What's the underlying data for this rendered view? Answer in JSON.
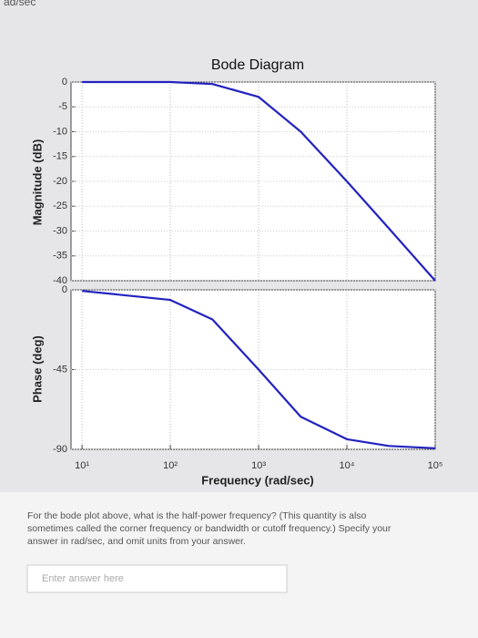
{
  "header": {
    "fragment": "ad/sec"
  },
  "chart_data": [
    {
      "type": "line",
      "title": "Bode Diagram",
      "ylabel": "Magnitude (dB)",
      "xscale": "log",
      "x": [
        10,
        100,
        300,
        1000,
        3000,
        10000,
        30000,
        100000
      ],
      "series": [
        {
          "name": "Magnitude",
          "color": "#2222c0",
          "values": [
            0,
            0,
            -0.4,
            -3,
            -10,
            -20,
            -29.5,
            -40
          ]
        }
      ],
      "xlim": [
        7.5,
        100000
      ],
      "ylim": [
        -40,
        0
      ],
      "yticks": [
        0,
        -5,
        -10,
        -15,
        -20,
        -25,
        -30,
        -35,
        -40
      ],
      "grid": true
    },
    {
      "type": "line",
      "ylabel": "Phase (deg)",
      "xlabel": "Frequency (rad/sec)",
      "xscale": "log",
      "x": [
        10,
        100,
        300,
        1000,
        3000,
        10000,
        30000,
        100000
      ],
      "series": [
        {
          "name": "Phase",
          "color": "#2222c0",
          "values": [
            -0.6,
            -5.7,
            -16.7,
            -45,
            -71.6,
            -84.3,
            -88.1,
            -89.4
          ]
        }
      ],
      "xlim": [
        7.5,
        100000
      ],
      "ylim": [
        -90,
        0
      ],
      "yticks": [
        0,
        -45,
        -90
      ],
      "xticks": [
        {
          "value": 10,
          "label": "10¹"
        },
        {
          "value": 100,
          "label": "10²"
        },
        {
          "value": 1000,
          "label": "10³"
        },
        {
          "value": 10000,
          "label": "10⁴"
        },
        {
          "value": 100000,
          "label": "10⁵"
        }
      ],
      "grid": true
    }
  ],
  "question": {
    "lines": [
      "For the bode plot above, what is the half-power frequency? (This quantity is also",
      "sometimes called the corner frequency or bandwidth or cutoff frequency.) Specify your",
      "answer in rad/sec, and omit units from your answer."
    ],
    "placeholder": "Enter answer here"
  }
}
